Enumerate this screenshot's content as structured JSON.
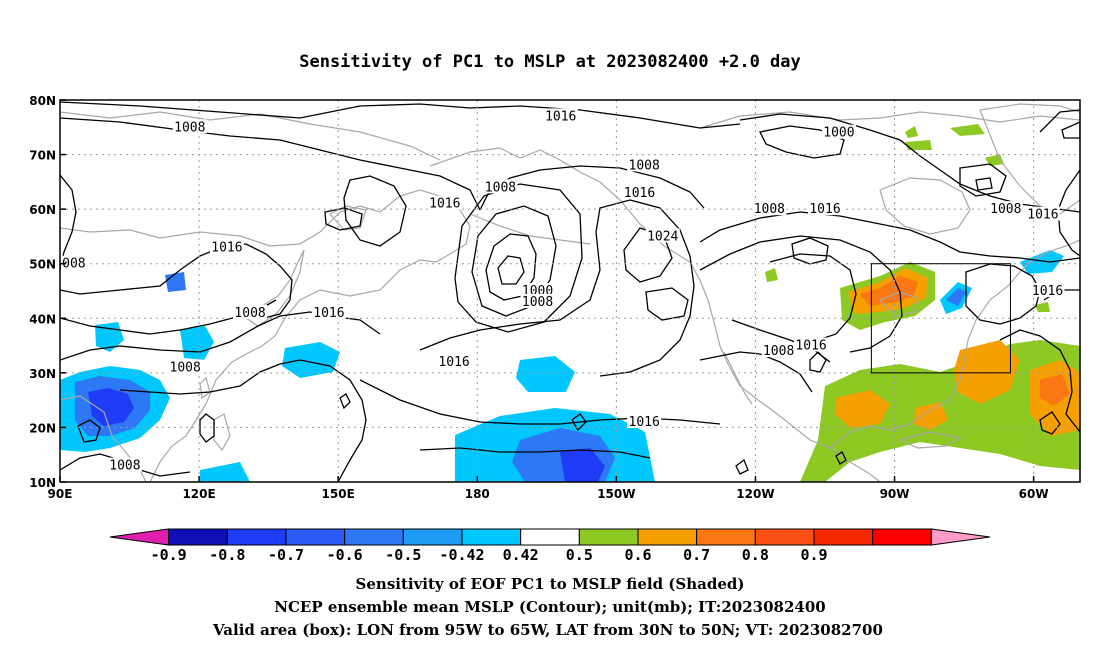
{
  "title": "Sensitivity of PC1 to MSLP at 2023082400 +2.0 day",
  "map": {
    "lon_range": [
      90,
      310
    ],
    "lat_range": [
      10,
      80
    ],
    "lon_ticks": [
      {
        "lon": 90,
        "label": "90E"
      },
      {
        "lon": 120,
        "label": "120E"
      },
      {
        "lon": 150,
        "label": "150E"
      },
      {
        "lon": 180,
        "label": "180"
      },
      {
        "lon": 210,
        "label": "150W"
      },
      {
        "lon": 240,
        "label": "120W"
      },
      {
        "lon": 270,
        "label": "90W"
      },
      {
        "lon": 300,
        "label": "60W"
      }
    ],
    "lat_ticks": [
      {
        "lat": 10,
        "label": "10N"
      },
      {
        "lat": 20,
        "label": "20N"
      },
      {
        "lat": 30,
        "label": "30N"
      },
      {
        "lat": 40,
        "label": "40N"
      },
      {
        "lat": 50,
        "label": "50N"
      },
      {
        "lat": 60,
        "label": "60N"
      },
      {
        "lat": 70,
        "label": "70N"
      },
      {
        "lat": 80,
        "label": "80N"
      }
    ],
    "grid": true,
    "valid_box": {
      "lon_min": 265,
      "lon_max": 295,
      "lat_min": 30,
      "lat_max": 50
    },
    "contour_labels": [
      {
        "text": "1008",
        "lon": 118,
        "lat": 75
      },
      {
        "text": "1016",
        "lon": 198,
        "lat": 77
      },
      {
        "text": "1008",
        "lon": 185,
        "lat": 64
      },
      {
        "text": "1016",
        "lon": 173,
        "lat": 61
      },
      {
        "text": "1000",
        "lon": 258,
        "lat": 74
      },
      {
        "text": "1008",
        "lon": 216,
        "lat": 68
      },
      {
        "text": "1016",
        "lon": 215,
        "lat": 63
      },
      {
        "text": "1024",
        "lon": 220,
        "lat": 55
      },
      {
        "text": "1008",
        "lon": 243,
        "lat": 60
      },
      {
        "text": "1016",
        "lon": 255,
        "lat": 60
      },
      {
        "text": "1008",
        "lon": 294,
        "lat": 60
      },
      {
        "text": "1016",
        "lon": 302,
        "lat": 59
      },
      {
        "text": "1016",
        "lon": 126,
        "lat": 53
      },
      {
        "text": "008",
        "lon": 93,
        "lat": 50
      },
      {
        "text": "1008",
        "lon": 131,
        "lat": 41
      },
      {
        "text": "1016",
        "lon": 148,
        "lat": 41
      },
      {
        "text": "1000",
        "lon": 193,
        "lat": 45
      },
      {
        "text": "1008",
        "lon": 193,
        "lat": 43
      },
      {
        "text": "1016",
        "lon": 175,
        "lat": 32
      },
      {
        "text": "1016",
        "lon": 252,
        "lat": 35
      },
      {
        "text": "1008",
        "lon": 245,
        "lat": 34
      },
      {
        "text": "1016",
        "lon": 303,
        "lat": 45
      },
      {
        "text": "1008",
        "lon": 117,
        "lat": 31
      },
      {
        "text": "1016",
        "lon": 216,
        "lat": 21
      },
      {
        "text": "1008",
        "lon": 104,
        "lat": 13
      }
    ]
  },
  "legend": {
    "colors": [
      "#e01fb0",
      "#0f0fb8",
      "#1e3cf5",
      "#2a5bf5",
      "#2d78f5",
      "#1e9cf5",
      "#00c8ff",
      "#ffffff",
      "#8ec823",
      "#f5a000",
      "#fa7814",
      "#fa5014",
      "#f52800",
      "#fa0000",
      "#ff9cc8"
    ],
    "labels": [
      "-0.9",
      "-0.8",
      "-0.7",
      "-0.6",
      "-0.5",
      "-0.42",
      "0.42",
      "0.5",
      "0.6",
      "0.7",
      "0.8",
      "0.9"
    ]
  },
  "footer": {
    "line1": "Sensitivity of EOF PC1 to MSLP field (Shaded)",
    "line2": "NCEP ensemble mean MSLP (Contour); unit(mb); IT:2023082400",
    "line3": "Valid area (box): LON from 95W to 65W, LAT from 30N to 50N; VT: 2023082700"
  }
}
